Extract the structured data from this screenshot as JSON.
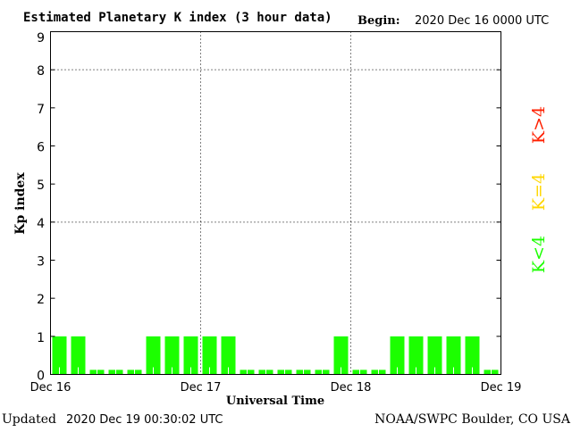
{
  "chart_data": {
    "type": "bar",
    "title": "Estimated Planetary K index (3 hour data)",
    "begin_label": "Begin:",
    "begin_value": "2020 Dec 16 0000 UTC",
    "xlabel": "Universal Time",
    "ylabel": "Kp index",
    "ylim": [
      0,
      9
    ],
    "yticks": [
      "0",
      "1",
      "2",
      "3",
      "4",
      "5",
      "6",
      "7",
      "8",
      "9"
    ],
    "xticks": [
      "Dec 16",
      "Dec 17",
      "Dec 18",
      "Dec 19"
    ],
    "grid_levels": [
      4,
      8
    ],
    "values": [
      1,
      1,
      0,
      0,
      0,
      1,
      1,
      1,
      1,
      1,
      0,
      0,
      0,
      0,
      0,
      1,
      0,
      0,
      1,
      1,
      1,
      1,
      1,
      0
    ],
    "bar_color": "#1cff00",
    "legend": [
      {
        "label": "K<4",
        "color": "#1cff00"
      },
      {
        "label": "K=4",
        "color": "#ffd700"
      },
      {
        "label": "K>4",
        "color": "#ff2000"
      }
    ],
    "legend_placement": "right"
  },
  "footer": {
    "updated_label": "Updated",
    "updated_value": "2020 Dec 19 00:30:02 UTC",
    "source": "NOAA/SWPC Boulder, CO USA"
  }
}
